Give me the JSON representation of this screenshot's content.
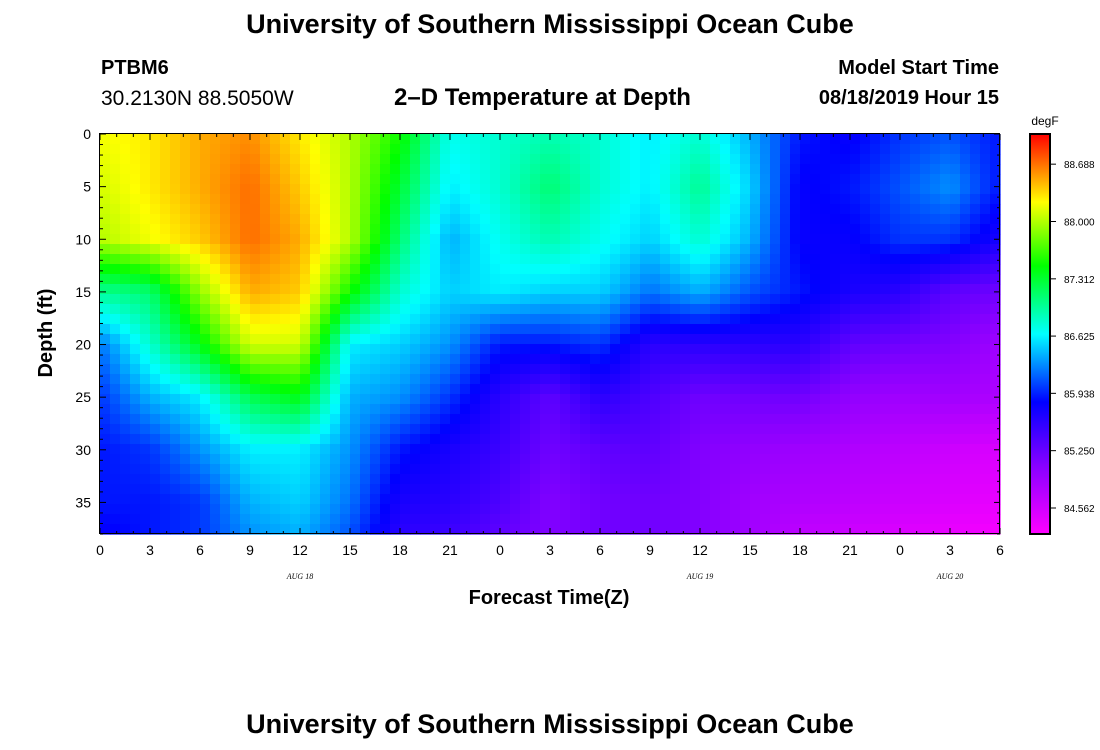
{
  "header": {
    "title": "University of Southern Mississippi Ocean Cube",
    "station_id": "PTBM6",
    "station_coords": "30.2130N 88.5050W",
    "plot_title": "2–D Temperature at Depth",
    "model_start_label": "Model Start Time",
    "model_start_time": "08/18/2019 Hour 15"
  },
  "footer": {
    "title": "University of Southern Mississippi Ocean Cube"
  },
  "chart_data": {
    "type": "heatmap",
    "title": "2–D Temperature at Depth",
    "xlabel": "Forecast Time(Z)",
    "ylabel": "Depth (ft)",
    "x_range_hours_since_start": [
      0,
      54
    ],
    "y_range_ft": [
      0,
      38
    ],
    "y_inverted": true,
    "x_tick_labels": [
      "0",
      "3",
      "6",
      "9",
      "12",
      "15",
      "18",
      "21",
      "0",
      "3",
      "6",
      "9",
      "12",
      "15",
      "18",
      "21",
      "0",
      "3",
      "6"
    ],
    "x_tick_hours": [
      0,
      3,
      6,
      9,
      12,
      15,
      18,
      21,
      24,
      27,
      30,
      33,
      36,
      39,
      42,
      45,
      48,
      51,
      54
    ],
    "y_tick_labels": [
      "0",
      "5",
      "10",
      "15",
      "20",
      "25",
      "30",
      "35"
    ],
    "y_tick_values": [
      0,
      5,
      10,
      15,
      20,
      25,
      30,
      35
    ],
    "date_labels": [
      {
        "text": "AUG 18",
        "hour": 12
      },
      {
        "text": "AUG 19",
        "hour": 36
      },
      {
        "text": "AUG 20",
        "hour": 51
      }
    ],
    "colorbar": {
      "unit": "degF",
      "min": 84.25,
      "max": 89.05,
      "tick_labels": [
        "88.688",
        "88.000",
        "87.312",
        "86.625",
        "85.938",
        "85.250",
        "84.562"
      ],
      "tick_values": [
        88.688,
        88.0,
        87.312,
        86.625,
        85.938,
        85.25,
        84.562
      ]
    },
    "grid_times_hours": [
      0,
      3,
      6,
      9,
      12,
      15,
      18,
      21,
      24,
      27,
      30,
      33,
      36,
      39,
      42,
      45,
      48,
      51,
      54
    ],
    "grid_depths_ft": [
      0,
      5,
      10,
      15,
      20,
      25,
      30,
      35,
      38
    ],
    "temperature_grid_degF": [
      [
        88.2,
        88.3,
        88.5,
        88.6,
        88.3,
        88.0,
        87.5,
        86.7,
        86.8,
        86.9,
        86.8,
        86.6,
        86.8,
        86.4,
        85.9,
        85.8,
        86.0,
        86.1,
        85.9
      ],
      [
        88.1,
        88.3,
        88.5,
        88.7,
        88.4,
        88.0,
        87.3,
        86.6,
        86.8,
        87.1,
        86.8,
        86.6,
        87.0,
        86.5,
        85.8,
        85.9,
        86.1,
        86.3,
        85.9
      ],
      [
        88.0,
        88.2,
        88.4,
        88.7,
        88.5,
        88.0,
        87.1,
        86.4,
        86.7,
        86.9,
        86.7,
        86.5,
        86.8,
        86.4,
        85.8,
        85.8,
        86.0,
        86.0,
        85.7
      ],
      [
        87.0,
        87.1,
        87.9,
        88.5,
        88.4,
        87.5,
        86.8,
        86.5,
        86.6,
        86.5,
        86.5,
        86.2,
        86.4,
        86.1,
        85.9,
        85.7,
        85.6,
        85.3,
        85.2
      ],
      [
        86.2,
        86.8,
        87.4,
        88.1,
        88.1,
        86.6,
        86.5,
        86.3,
        85.9,
        85.9,
        86.0,
        85.6,
        85.6,
        85.6,
        85.6,
        85.3,
        85.2,
        85.1,
        84.9
      ],
      [
        86.0,
        86.4,
        86.6,
        87.2,
        87.4,
        86.4,
        86.3,
        86.0,
        85.6,
        85.3,
        85.6,
        85.4,
        85.2,
        85.2,
        85.2,
        85.0,
        84.9,
        84.9,
        84.8
      ],
      [
        85.9,
        86.0,
        86.3,
        86.6,
        86.6,
        86.3,
        85.9,
        85.7,
        85.5,
        85.2,
        85.3,
        85.3,
        85.1,
        85.0,
        84.9,
        84.8,
        84.7,
        84.6,
        84.5
      ],
      [
        85.9,
        85.9,
        86.0,
        86.4,
        86.5,
        86.2,
        85.7,
        85.6,
        85.4,
        85.1,
        85.2,
        85.2,
        85.1,
        84.9,
        84.8,
        84.7,
        84.6,
        84.5,
        84.4
      ],
      [
        85.8,
        85.9,
        86.0,
        86.3,
        86.4,
        86.1,
        85.6,
        85.5,
        85.3,
        85.1,
        85.2,
        85.2,
        85.1,
        84.9,
        84.7,
        84.6,
        84.5,
        84.4,
        84.3
      ]
    ]
  }
}
